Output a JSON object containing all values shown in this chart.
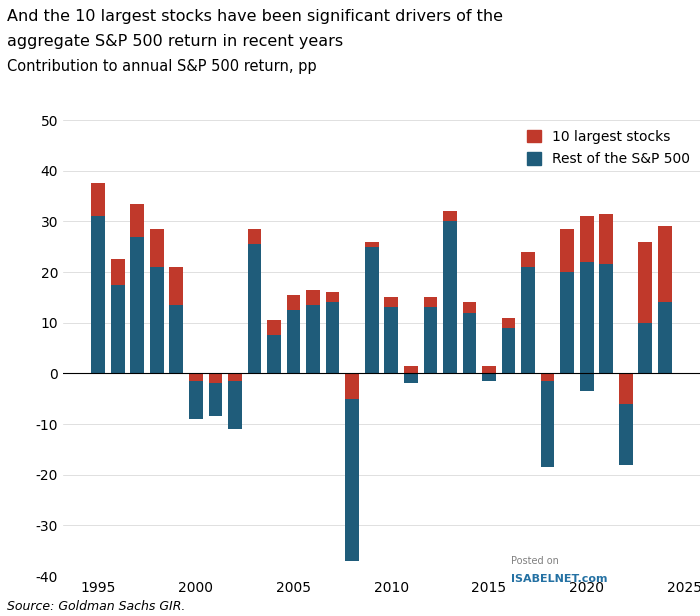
{
  "years": [
    1995,
    1996,
    1997,
    1998,
    1999,
    2000,
    2001,
    2002,
    2003,
    2004,
    2005,
    2006,
    2007,
    2008,
    2009,
    2010,
    2011,
    2012,
    2013,
    2014,
    2015,
    2016,
    2017,
    2018,
    2019,
    2020,
    2021,
    2022,
    2023,
    2024
  ],
  "top10_positive": [
    6.5,
    5.0,
    6.5,
    7.5,
    7.5,
    0,
    0,
    0,
    3.0,
    3.0,
    3.0,
    3.0,
    2.0,
    0,
    1.0,
    2.0,
    1.5,
    2.0,
    2.0,
    2.0,
    1.5,
    2.0,
    3.0,
    0,
    8.5,
    9.0,
    10.0,
    0,
    16.0,
    15.0
  ],
  "top10_negative": [
    0,
    0,
    0,
    0,
    0,
    -1.5,
    -2.0,
    -1.5,
    0,
    0,
    0,
    0,
    0,
    -5.0,
    0,
    0,
    0,
    0,
    0,
    0,
    0,
    0,
    0,
    -1.5,
    0,
    0,
    0,
    -6.0,
    0,
    0
  ],
  "rest_positive": [
    31.0,
    17.5,
    27.0,
    21.0,
    13.5,
    0,
    0,
    0,
    25.5,
    7.5,
    12.5,
    13.5,
    14.0,
    0,
    25.0,
    13.0,
    0,
    13.0,
    30.0,
    12.0,
    0,
    9.0,
    21.0,
    0,
    20.0,
    22.0,
    21.5,
    0,
    10.0,
    14.0
  ],
  "rest_negative": [
    0,
    0,
    0,
    0,
    0,
    -7.5,
    -6.5,
    -9.5,
    0,
    0,
    0,
    0,
    0,
    -32.0,
    0,
    0,
    -2.0,
    0,
    0,
    0,
    -1.5,
    0,
    0,
    -17.0,
    0,
    -3.5,
    0,
    -12.0,
    0,
    0
  ],
  "color_top10": "#c0392b",
  "color_rest": "#1f5c7a",
  "title_line1": "And the 10 largest stocks have been significant drivers of the",
  "title_line2": "aggregate S&P 500 return in recent years",
  "title_line3": "Contribution to annual S&P 500 return, pp",
  "ylim": [
    -40,
    50
  ],
  "yticks": [
    -40,
    -30,
    -20,
    -10,
    0,
    10,
    20,
    30,
    40,
    50
  ],
  "xticks": [
    1995,
    2000,
    2005,
    2010,
    2015,
    2020,
    2025
  ],
  "source": "Source: Goldman Sachs GIR.",
  "legend_top10": "10 largest stocks",
  "legend_rest": "Rest of the S&P 500",
  "background_color": "#ffffff"
}
